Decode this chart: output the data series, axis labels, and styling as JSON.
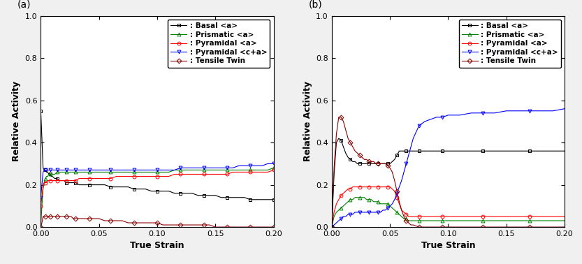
{
  "title_a": "(a)",
  "title_b": "(b)",
  "xlabel": "True Strain",
  "ylabel": "Relative Activity",
  "xlim": [
    0,
    0.2
  ],
  "ylim": [
    0,
    1.0
  ],
  "xticks": [
    0.0,
    0.05,
    0.1,
    0.15,
    0.2
  ],
  "yticks": [
    0.0,
    0.2,
    0.4,
    0.6,
    0.8,
    1.0
  ],
  "legend_labels": [
    ": Basal <a>",
    ": Prismatic <a>",
    ": Pyramidal <a>",
    ": Pyramidal <c+a>",
    ": Tensile Twin"
  ],
  "colors": [
    "black",
    "green",
    "red",
    "blue",
    "#8B0000"
  ],
  "markers": [
    "s",
    "^",
    "o",
    "v",
    "D"
  ],
  "series_a": {
    "basal": {
      "x": [
        0.0,
        0.001,
        0.002,
        0.003,
        0.004,
        0.005,
        0.006,
        0.007,
        0.008,
        0.009,
        0.01,
        0.012,
        0.014,
        0.016,
        0.018,
        0.02,
        0.022,
        0.024,
        0.026,
        0.028,
        0.03,
        0.033,
        0.036,
        0.039,
        0.042,
        0.045,
        0.05,
        0.055,
        0.06,
        0.065,
        0.07,
        0.075,
        0.08,
        0.085,
        0.09,
        0.095,
        0.1,
        0.105,
        0.11,
        0.115,
        0.12,
        0.125,
        0.13,
        0.135,
        0.14,
        0.145,
        0.15,
        0.155,
        0.16,
        0.165,
        0.17,
        0.175,
        0.18,
        0.185,
        0.19,
        0.195,
        0.2
      ],
      "y": [
        0.55,
        0.42,
        0.28,
        0.27,
        0.27,
        0.26,
        0.26,
        0.25,
        0.25,
        0.24,
        0.24,
        0.23,
        0.23,
        0.22,
        0.22,
        0.22,
        0.21,
        0.21,
        0.21,
        0.21,
        0.21,
        0.2,
        0.2,
        0.2,
        0.2,
        0.2,
        0.2,
        0.2,
        0.19,
        0.19,
        0.19,
        0.19,
        0.18,
        0.18,
        0.18,
        0.17,
        0.17,
        0.17,
        0.17,
        0.16,
        0.16,
        0.16,
        0.16,
        0.15,
        0.15,
        0.15,
        0.15,
        0.14,
        0.14,
        0.14,
        0.14,
        0.14,
        0.13,
        0.13,
        0.13,
        0.13,
        0.13
      ]
    },
    "prismatic": {
      "x": [
        0.0,
        0.001,
        0.002,
        0.003,
        0.004,
        0.005,
        0.006,
        0.007,
        0.008,
        0.009,
        0.01,
        0.012,
        0.014,
        0.016,
        0.018,
        0.02,
        0.022,
        0.024,
        0.026,
        0.028,
        0.03,
        0.033,
        0.036,
        0.039,
        0.042,
        0.045,
        0.05,
        0.055,
        0.06,
        0.065,
        0.07,
        0.075,
        0.08,
        0.085,
        0.09,
        0.095,
        0.1,
        0.105,
        0.11,
        0.115,
        0.12,
        0.125,
        0.13,
        0.135,
        0.14,
        0.145,
        0.15,
        0.155,
        0.16,
        0.165,
        0.17,
        0.175,
        0.18,
        0.185,
        0.19,
        0.195,
        0.2
      ],
      "y": [
        0.0,
        0.1,
        0.18,
        0.21,
        0.23,
        0.24,
        0.24,
        0.25,
        0.25,
        0.25,
        0.25,
        0.25,
        0.26,
        0.26,
        0.26,
        0.26,
        0.26,
        0.26,
        0.26,
        0.26,
        0.26,
        0.26,
        0.26,
        0.26,
        0.26,
        0.26,
        0.26,
        0.26,
        0.26,
        0.26,
        0.26,
        0.26,
        0.26,
        0.26,
        0.26,
        0.26,
        0.26,
        0.26,
        0.26,
        0.27,
        0.27,
        0.27,
        0.27,
        0.27,
        0.27,
        0.27,
        0.27,
        0.27,
        0.27,
        0.27,
        0.27,
        0.27,
        0.27,
        0.27,
        0.27,
        0.27,
        0.28
      ]
    },
    "pyramidal_a": {
      "x": [
        0.0,
        0.001,
        0.002,
        0.003,
        0.004,
        0.005,
        0.006,
        0.007,
        0.008,
        0.009,
        0.01,
        0.012,
        0.014,
        0.016,
        0.018,
        0.02,
        0.022,
        0.024,
        0.026,
        0.028,
        0.03,
        0.033,
        0.036,
        0.039,
        0.042,
        0.045,
        0.05,
        0.055,
        0.06,
        0.065,
        0.07,
        0.075,
        0.08,
        0.085,
        0.09,
        0.095,
        0.1,
        0.105,
        0.11,
        0.115,
        0.12,
        0.125,
        0.13,
        0.135,
        0.14,
        0.145,
        0.15,
        0.155,
        0.16,
        0.165,
        0.17,
        0.175,
        0.18,
        0.185,
        0.19,
        0.195,
        0.2
      ],
      "y": [
        0.1,
        0.14,
        0.2,
        0.21,
        0.21,
        0.21,
        0.22,
        0.22,
        0.22,
        0.22,
        0.22,
        0.22,
        0.22,
        0.22,
        0.22,
        0.22,
        0.22,
        0.22,
        0.22,
        0.22,
        0.22,
        0.23,
        0.23,
        0.23,
        0.23,
        0.23,
        0.23,
        0.23,
        0.23,
        0.24,
        0.24,
        0.24,
        0.24,
        0.24,
        0.24,
        0.24,
        0.24,
        0.24,
        0.24,
        0.25,
        0.25,
        0.25,
        0.25,
        0.25,
        0.25,
        0.25,
        0.25,
        0.25,
        0.25,
        0.26,
        0.26,
        0.26,
        0.26,
        0.26,
        0.26,
        0.26,
        0.27
      ]
    },
    "pyramidal_ca": {
      "x": [
        0.0,
        0.001,
        0.002,
        0.003,
        0.004,
        0.005,
        0.006,
        0.007,
        0.008,
        0.009,
        0.01,
        0.012,
        0.014,
        0.016,
        0.018,
        0.02,
        0.022,
        0.024,
        0.026,
        0.028,
        0.03,
        0.033,
        0.036,
        0.039,
        0.042,
        0.045,
        0.05,
        0.055,
        0.06,
        0.065,
        0.07,
        0.075,
        0.08,
        0.085,
        0.09,
        0.095,
        0.1,
        0.105,
        0.11,
        0.115,
        0.12,
        0.125,
        0.13,
        0.135,
        0.14,
        0.145,
        0.15,
        0.155,
        0.16,
        0.165,
        0.17,
        0.175,
        0.18,
        0.185,
        0.19,
        0.195,
        0.2
      ],
      "y": [
        0.14,
        0.2,
        0.26,
        0.27,
        0.27,
        0.27,
        0.27,
        0.27,
        0.27,
        0.27,
        0.27,
        0.27,
        0.27,
        0.27,
        0.27,
        0.27,
        0.27,
        0.27,
        0.27,
        0.27,
        0.27,
        0.27,
        0.27,
        0.27,
        0.27,
        0.27,
        0.27,
        0.27,
        0.27,
        0.27,
        0.27,
        0.27,
        0.27,
        0.27,
        0.27,
        0.27,
        0.27,
        0.27,
        0.27,
        0.27,
        0.28,
        0.28,
        0.28,
        0.28,
        0.28,
        0.28,
        0.28,
        0.28,
        0.28,
        0.28,
        0.29,
        0.29,
        0.29,
        0.29,
        0.29,
        0.3,
        0.3
      ]
    },
    "twin": {
      "x": [
        0.0,
        0.001,
        0.002,
        0.003,
        0.004,
        0.005,
        0.006,
        0.007,
        0.008,
        0.009,
        0.01,
        0.012,
        0.014,
        0.016,
        0.018,
        0.02,
        0.022,
        0.024,
        0.026,
        0.028,
        0.03,
        0.033,
        0.036,
        0.039,
        0.042,
        0.045,
        0.05,
        0.055,
        0.06,
        0.065,
        0.07,
        0.075,
        0.08,
        0.085,
        0.09,
        0.095,
        0.1,
        0.105,
        0.11,
        0.115,
        0.12,
        0.125,
        0.13,
        0.135,
        0.14,
        0.145,
        0.15,
        0.155,
        0.16,
        0.165,
        0.17,
        0.175,
        0.18,
        0.185,
        0.19,
        0.195,
        0.2
      ],
      "y": [
        0.0,
        0.02,
        0.05,
        0.05,
        0.05,
        0.05,
        0.05,
        0.05,
        0.05,
        0.05,
        0.05,
        0.05,
        0.05,
        0.05,
        0.05,
        0.05,
        0.05,
        0.05,
        0.05,
        0.04,
        0.04,
        0.04,
        0.04,
        0.04,
        0.04,
        0.04,
        0.04,
        0.03,
        0.03,
        0.03,
        0.03,
        0.02,
        0.02,
        0.02,
        0.02,
        0.02,
        0.02,
        0.01,
        0.01,
        0.01,
        0.01,
        0.01,
        0.01,
        0.01,
        0.01,
        0.01,
        0.0,
        0.0,
        0.0,
        0.0,
        0.0,
        0.0,
        0.0,
        0.0,
        0.0,
        0.0,
        0.0
      ]
    }
  },
  "series_b": {
    "basal": {
      "x": [
        0.0,
        0.002,
        0.004,
        0.006,
        0.008,
        0.01,
        0.012,
        0.014,
        0.016,
        0.018,
        0.02,
        0.022,
        0.024,
        0.026,
        0.028,
        0.03,
        0.032,
        0.034,
        0.036,
        0.038,
        0.04,
        0.042,
        0.044,
        0.046,
        0.048,
        0.05,
        0.052,
        0.054,
        0.056,
        0.058,
        0.06,
        0.062,
        0.064,
        0.066,
        0.068,
        0.07,
        0.075,
        0.08,
        0.085,
        0.09,
        0.095,
        0.1,
        0.11,
        0.12,
        0.13,
        0.14,
        0.15,
        0.16,
        0.17,
        0.18,
        0.19,
        0.2
      ],
      "y": [
        0.0,
        0.25,
        0.4,
        0.42,
        0.41,
        0.38,
        0.35,
        0.33,
        0.32,
        0.31,
        0.31,
        0.3,
        0.3,
        0.3,
        0.3,
        0.3,
        0.3,
        0.3,
        0.3,
        0.3,
        0.3,
        0.3,
        0.3,
        0.3,
        0.3,
        0.3,
        0.31,
        0.32,
        0.34,
        0.36,
        0.36,
        0.36,
        0.36,
        0.36,
        0.36,
        0.36,
        0.36,
        0.36,
        0.36,
        0.36,
        0.36,
        0.36,
        0.36,
        0.36,
        0.36,
        0.36,
        0.36,
        0.36,
        0.36,
        0.36,
        0.36,
        0.36
      ]
    },
    "prismatic": {
      "x": [
        0.0,
        0.002,
        0.004,
        0.006,
        0.008,
        0.01,
        0.012,
        0.014,
        0.016,
        0.018,
        0.02,
        0.022,
        0.024,
        0.026,
        0.028,
        0.03,
        0.032,
        0.034,
        0.036,
        0.038,
        0.04,
        0.042,
        0.044,
        0.046,
        0.048,
        0.05,
        0.052,
        0.054,
        0.056,
        0.058,
        0.06,
        0.062,
        0.064,
        0.066,
        0.068,
        0.07,
        0.075,
        0.08,
        0.085,
        0.09,
        0.095,
        0.1,
        0.11,
        0.12,
        0.13,
        0.14,
        0.15,
        0.16,
        0.17,
        0.18,
        0.19,
        0.2
      ],
      "y": [
        0.0,
        0.05,
        0.07,
        0.08,
        0.09,
        0.1,
        0.11,
        0.12,
        0.13,
        0.13,
        0.14,
        0.14,
        0.14,
        0.14,
        0.14,
        0.13,
        0.13,
        0.13,
        0.12,
        0.12,
        0.12,
        0.11,
        0.11,
        0.11,
        0.11,
        0.1,
        0.09,
        0.08,
        0.07,
        0.06,
        0.05,
        0.04,
        0.04,
        0.03,
        0.03,
        0.03,
        0.03,
        0.03,
        0.03,
        0.03,
        0.03,
        0.03,
        0.03,
        0.03,
        0.03,
        0.03,
        0.03,
        0.03,
        0.03,
        0.03,
        0.03,
        0.03
      ]
    },
    "pyramidal_a": {
      "x": [
        0.0,
        0.002,
        0.004,
        0.006,
        0.008,
        0.01,
        0.012,
        0.014,
        0.016,
        0.018,
        0.02,
        0.022,
        0.024,
        0.026,
        0.028,
        0.03,
        0.032,
        0.034,
        0.036,
        0.038,
        0.04,
        0.042,
        0.044,
        0.046,
        0.048,
        0.05,
        0.052,
        0.054,
        0.056,
        0.058,
        0.06,
        0.062,
        0.064,
        0.066,
        0.068,
        0.07,
        0.075,
        0.08,
        0.085,
        0.09,
        0.095,
        0.1,
        0.11,
        0.12,
        0.13,
        0.14,
        0.15,
        0.16,
        0.17,
        0.18,
        0.19,
        0.2
      ],
      "y": [
        0.0,
        0.07,
        0.11,
        0.13,
        0.15,
        0.16,
        0.17,
        0.18,
        0.18,
        0.19,
        0.19,
        0.19,
        0.19,
        0.19,
        0.19,
        0.19,
        0.19,
        0.19,
        0.19,
        0.19,
        0.19,
        0.19,
        0.19,
        0.19,
        0.19,
        0.19,
        0.18,
        0.17,
        0.14,
        0.11,
        0.08,
        0.07,
        0.06,
        0.05,
        0.05,
        0.05,
        0.05,
        0.05,
        0.05,
        0.05,
        0.05,
        0.05,
        0.05,
        0.05,
        0.05,
        0.05,
        0.05,
        0.05,
        0.05,
        0.05,
        0.05,
        0.05
      ]
    },
    "pyramidal_ca": {
      "x": [
        0.0,
        0.002,
        0.004,
        0.006,
        0.008,
        0.01,
        0.012,
        0.014,
        0.016,
        0.018,
        0.02,
        0.022,
        0.024,
        0.026,
        0.028,
        0.03,
        0.032,
        0.034,
        0.036,
        0.038,
        0.04,
        0.042,
        0.044,
        0.046,
        0.048,
        0.05,
        0.052,
        0.054,
        0.056,
        0.058,
        0.06,
        0.062,
        0.064,
        0.066,
        0.068,
        0.07,
        0.075,
        0.08,
        0.085,
        0.09,
        0.095,
        0.1,
        0.11,
        0.12,
        0.13,
        0.14,
        0.15,
        0.16,
        0.17,
        0.18,
        0.19,
        0.2
      ],
      "y": [
        0.0,
        0.01,
        0.02,
        0.03,
        0.04,
        0.05,
        0.05,
        0.06,
        0.06,
        0.06,
        0.07,
        0.07,
        0.07,
        0.07,
        0.07,
        0.07,
        0.07,
        0.07,
        0.07,
        0.07,
        0.07,
        0.07,
        0.08,
        0.08,
        0.09,
        0.1,
        0.11,
        0.13,
        0.16,
        0.19,
        0.22,
        0.26,
        0.3,
        0.34,
        0.38,
        0.42,
        0.48,
        0.5,
        0.51,
        0.52,
        0.52,
        0.53,
        0.53,
        0.54,
        0.54,
        0.54,
        0.55,
        0.55,
        0.55,
        0.55,
        0.55,
        0.56
      ]
    },
    "twin": {
      "x": [
        0.0,
        0.002,
        0.004,
        0.006,
        0.008,
        0.01,
        0.012,
        0.014,
        0.016,
        0.018,
        0.02,
        0.022,
        0.024,
        0.026,
        0.028,
        0.03,
        0.032,
        0.034,
        0.036,
        0.038,
        0.04,
        0.042,
        0.044,
        0.046,
        0.048,
        0.05,
        0.052,
        0.054,
        0.056,
        0.058,
        0.06,
        0.062,
        0.064,
        0.066,
        0.068,
        0.07,
        0.075,
        0.08,
        0.085,
        0.09,
        0.095,
        0.1,
        0.11,
        0.12,
        0.13,
        0.14,
        0.15,
        0.16,
        0.17,
        0.18,
        0.19,
        0.2
      ],
      "y": [
        0.0,
        0.28,
        0.44,
        0.52,
        0.52,
        0.5,
        0.46,
        0.42,
        0.4,
        0.38,
        0.36,
        0.35,
        0.34,
        0.33,
        0.32,
        0.32,
        0.31,
        0.31,
        0.31,
        0.3,
        0.3,
        0.3,
        0.3,
        0.3,
        0.29,
        0.28,
        0.26,
        0.22,
        0.17,
        0.12,
        0.08,
        0.05,
        0.03,
        0.02,
        0.01,
        0.01,
        0.0,
        0.0,
        0.0,
        0.0,
        0.0,
        0.0,
        0.0,
        0.0,
        0.0,
        0.0,
        0.0,
        0.0,
        0.0,
        0.0,
        0.0,
        0.0
      ]
    }
  },
  "marker_size": 3.5,
  "linewidth": 0.8,
  "font_size_label": 9,
  "font_size_tick": 8,
  "font_size_legend": 7.5,
  "background_color": "#f0f0f0",
  "panel_label_size": 10
}
